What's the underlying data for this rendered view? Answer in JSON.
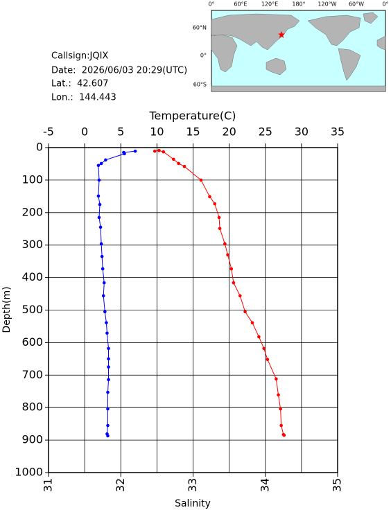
{
  "info": {
    "callsign": "Callsign:JQIX",
    "date": "Date:  2026/06/03 20:29(UTC)",
    "lat": "Lat.:  42.607",
    "lon": "Lon.:  144.443"
  },
  "map": {
    "lon_labels": [
      "0°",
      "60°E",
      "120°E",
      "180°",
      "120°W",
      "60°W",
      "0°"
    ],
    "lat_labels": [
      "60°N",
      "0°",
      "60°S"
    ]
  },
  "chart_data": {
    "type": "line",
    "xlabel": "Temperature(C)",
    "x2label": "Salinity",
    "ylabel": "Depth(m)",
    "xlim": [
      -5,
      35
    ],
    "xticks": [
      -5,
      0,
      5,
      10,
      15,
      20,
      25,
      30,
      35
    ],
    "x2lim": [
      31,
      35
    ],
    "x2ticks": [
      31,
      32,
      33,
      34,
      35
    ],
    "ylim": [
      0,
      1000
    ],
    "yticks": [
      0,
      100,
      200,
      300,
      400,
      500,
      600,
      700,
      800,
      900,
      1000
    ],
    "grid": true,
    "series": [
      {
        "color": "#0000ff",
        "axis": "x",
        "x": [
          7.0,
          5.4,
          5.5,
          2.9,
          2.3,
          1.9,
          2.0,
          1.9,
          2.1,
          2.0,
          2.2,
          2.3,
          2.4,
          2.5,
          2.7,
          2.6,
          2.8,
          3.0,
          3.1,
          3.3,
          3.3,
          3.3,
          3.3,
          3.2,
          3.2,
          3.2,
          3.1,
          3.2
        ],
        "values": [
          11,
          15,
          19,
          38,
          49,
          55,
          100,
          149,
          175,
          215,
          245,
          296,
          335,
          373,
          416,
          456,
          505,
          539,
          571,
          618,
          650,
          675,
          714,
          753,
          804,
          855,
          881,
          887
        ]
      },
      {
        "color": "#ff0000",
        "axis": "x2",
        "x": [
          32.47,
          32.53,
          32.59,
          32.73,
          32.8,
          32.88,
          33.11,
          33.23,
          33.3,
          33.36,
          33.37,
          33.44,
          33.48,
          33.53,
          33.56,
          33.65,
          33.72,
          33.82,
          33.91,
          33.98,
          34.03,
          34.15,
          34.18,
          34.21,
          34.22,
          34.25,
          34.26
        ],
        "values": [
          11,
          9,
          13,
          36,
          49,
          58,
          100,
          151,
          173,
          215,
          249,
          296,
          330,
          373,
          416,
          456,
          505,
          539,
          582,
          618,
          652,
          712,
          761,
          804,
          855,
          883,
          885
        ]
      }
    ]
  }
}
